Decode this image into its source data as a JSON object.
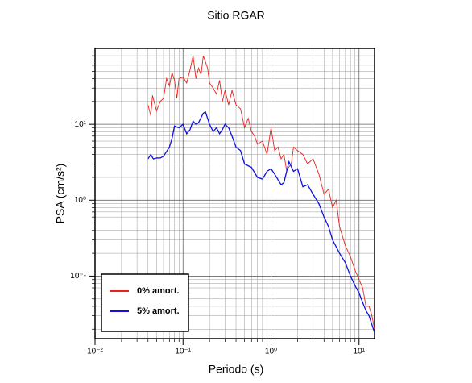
{
  "chart_data": {
    "type": "line",
    "title": "Sitio RGAR",
    "xlabel": "Periodo (s)",
    "ylabel": "PSA (cm/s²)",
    "xscale": "log",
    "yscale": "log",
    "grid": true,
    "legend": "lower left",
    "xlim": [
      0.01,
      15
    ],
    "ylim": [
      0.015,
      100
    ],
    "xticks": [
      {
        "value": 0.01,
        "label": "10⁻²"
      },
      {
        "value": 0.1,
        "label": "10⁻¹"
      },
      {
        "value": 1,
        "label": "10⁰"
      },
      {
        "value": 10,
        "label": "10¹"
      }
    ],
    "yticks": [
      {
        "value": 0.1,
        "label": "10⁻¹"
      },
      {
        "value": 1,
        "label": "10⁰"
      },
      {
        "value": 10,
        "label": "10¹"
      }
    ],
    "series": [
      {
        "name": "0% amort.",
        "color": "#e8211c",
        "x": [
          0.04,
          0.043,
          0.045,
          0.05,
          0.055,
          0.06,
          0.065,
          0.07,
          0.075,
          0.08,
          0.085,
          0.09,
          0.1,
          0.11,
          0.12,
          0.13,
          0.14,
          0.15,
          0.16,
          0.17,
          0.19,
          0.2,
          0.22,
          0.24,
          0.26,
          0.28,
          0.3,
          0.33,
          0.36,
          0.4,
          0.45,
          0.5,
          0.55,
          0.6,
          0.65,
          0.7,
          0.8,
          0.9,
          1.0,
          1.1,
          1.2,
          1.3,
          1.4,
          1.5,
          1.7,
          1.8,
          2.0,
          2.3,
          2.6,
          3.0,
          3.5,
          4.0,
          4.5,
          5.0,
          5.5,
          6.0,
          7.0,
          8.0,
          9.0,
          10,
          11,
          12,
          13,
          14,
          15
        ],
        "values": [
          18,
          13,
          24,
          15,
          20,
          22,
          40,
          32,
          48,
          38,
          22,
          40,
          42,
          35,
          52,
          80,
          40,
          55,
          45,
          80,
          55,
          35,
          30,
          25,
          38,
          20,
          28,
          18,
          28,
          18,
          16,
          9,
          12,
          8,
          7,
          5.5,
          6,
          4,
          9,
          4.5,
          5,
          3.5,
          4,
          2.5,
          3,
          5,
          4.5,
          4,
          3,
          3.5,
          2.2,
          1.2,
          1.4,
          0.8,
          1.0,
          0.45,
          0.25,
          0.18,
          0.12,
          0.09,
          0.07,
          0.04,
          0.04,
          0.03,
          0.02
        ]
      },
      {
        "name": "5% amort.",
        "color": "#1010e0",
        "x": [
          0.04,
          0.043,
          0.046,
          0.05,
          0.055,
          0.06,
          0.07,
          0.075,
          0.08,
          0.09,
          0.1,
          0.11,
          0.12,
          0.13,
          0.14,
          0.15,
          0.17,
          0.18,
          0.2,
          0.22,
          0.24,
          0.26,
          0.28,
          0.3,
          0.33,
          0.36,
          0.4,
          0.45,
          0.5,
          0.6,
          0.7,
          0.8,
          0.9,
          1.0,
          1.1,
          1.3,
          1.4,
          1.6,
          1.8,
          2.0,
          2.3,
          2.6,
          3.0,
          3.5,
          4.0,
          4.5,
          5,
          6,
          7,
          8,
          9,
          10,
          11,
          12,
          13,
          15
        ],
        "values": [
          3.5,
          4,
          3.5,
          3.6,
          3.6,
          3.8,
          5,
          6.5,
          9.5,
          9,
          10,
          7.5,
          8.5,
          11,
          10,
          10.5,
          14,
          14.5,
          10,
          8,
          9,
          7.5,
          8.5,
          10,
          9,
          7,
          5,
          4.5,
          3,
          2.7,
          2,
          1.9,
          2.4,
          2.6,
          2.2,
          1.6,
          1.7,
          3.2,
          2.4,
          2.6,
          1.5,
          1.6,
          1.2,
          0.9,
          0.6,
          0.45,
          0.3,
          0.2,
          0.15,
          0.1,
          0.075,
          0.06,
          0.045,
          0.035,
          0.03,
          0.018
        ]
      }
    ]
  }
}
